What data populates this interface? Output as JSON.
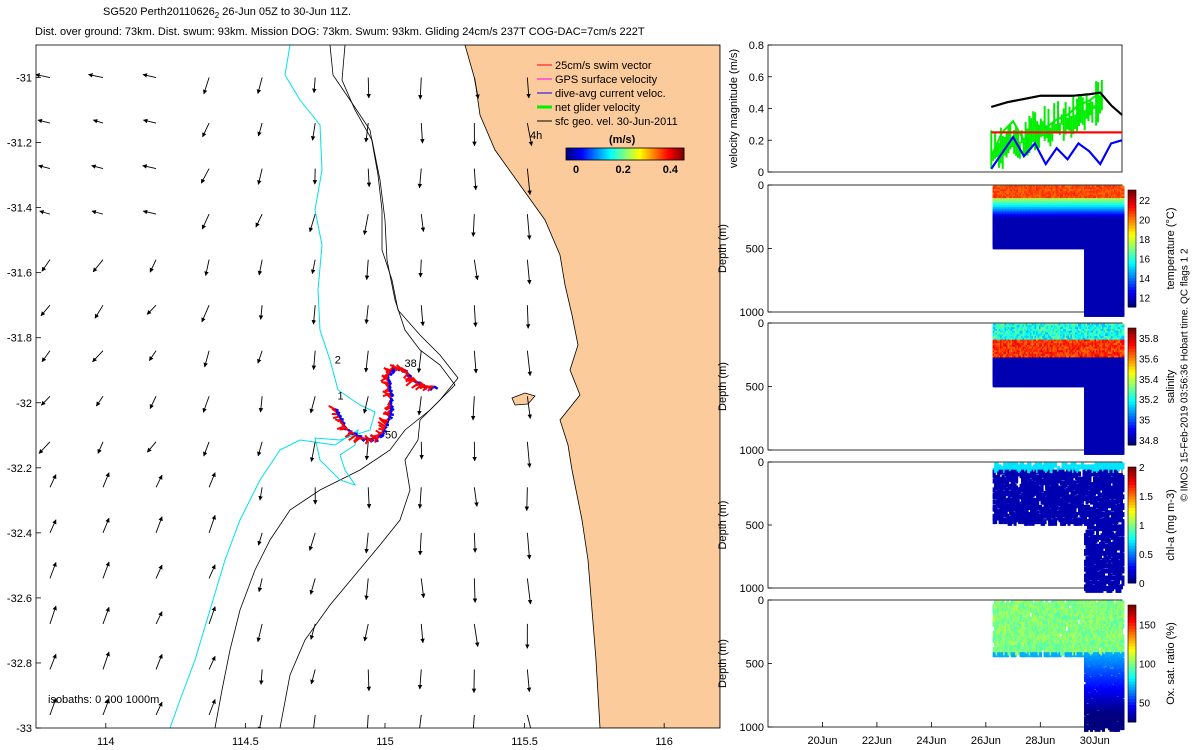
{
  "header": {
    "title_line1_pre": "SG520 Perth20110626",
    "title_line1_sub": "2",
    "title_line1_post": " 26-Jun 05Z to 30-Jun 11Z.",
    "title_line2": "Dist. over ground: 73km. Dist. swum: 93km. Mission DOG: 73km. Swum: 93km. Gliding 24cm/s 237T COG-DAC=7cm/s 222T"
  },
  "credit": "© IMOS 15-Feb-2019 03:56:36 Hobart time. QC flags 1  2",
  "colors": {
    "land": "#fbcb9c",
    "isobath_shallow": "#00e0e8",
    "isobath_deep": "#000000",
    "swim": "#ff0000",
    "gps": "#ff00ff",
    "dac": "#0000ff",
    "net": "#00ee00",
    "sfc": "#000000"
  },
  "chart_data": [
    {
      "type": "map",
      "x_ticks": [
        "114",
        "114.5",
        "115",
        "115.5",
        "116"
      ],
      "y_ticks": [
        "-31",
        "-31.2",
        "-31.4",
        "-31.6",
        "-31.8",
        "-32",
        "-32.2",
        "-32.4",
        "-32.6",
        "-32.8",
        "-33"
      ],
      "xlim": [
        113.75,
        116.2
      ],
      "ylim": [
        -33.0,
        -30.9
      ],
      "legend": {
        "items": [
          "25cm/s swim vector",
          "GPS surface velocity",
          "dive-avg current veloc.",
          "net glider velocity",
          "sfc geo. vel. 30-Jun-2011"
        ],
        "scale_label": "4h",
        "colorbar_title": "(m/s)",
        "colorbar_ticks": [
          "0",
          "0.2",
          "0.4"
        ],
        "colorbar_range": [
          0,
          0.5
        ]
      },
      "isobaths_note": "isobaths: 0   200   1000m",
      "dive_labels": [
        {
          "label": "2",
          "lon": 114.82,
          "lat": -31.88
        },
        {
          "label": "1",
          "lon": 114.83,
          "lat": -31.99
        },
        {
          "label": "38",
          "lon": 115.07,
          "lat": -31.89
        },
        {
          "label": "50",
          "lon": 115.0,
          "lat": -32.11
        }
      ],
      "glider_track": [
        [
          114.82,
          -32.02
        ],
        [
          114.86,
          -32.08
        ],
        [
          114.92,
          -32.11
        ],
        [
          114.97,
          -32.11
        ],
        [
          115.0,
          -32.08
        ],
        [
          115.02,
          -32.03
        ],
        [
          115.02,
          -31.97
        ],
        [
          115.01,
          -31.92
        ],
        [
          115.03,
          -31.89
        ],
        [
          115.07,
          -31.9
        ],
        [
          115.1,
          -31.93
        ],
        [
          115.14,
          -31.95
        ],
        [
          115.18,
          -31.95
        ]
      ],
      "sfc_vel_field_u": [
        -0.15,
        -0.05,
        0.0,
        0.05
      ],
      "sfc_vel_field_v": [
        -0.15,
        -0.3,
        -0.35,
        -0.4
      ]
    },
    {
      "type": "line",
      "ylabel": "velocity magnitude (m/s)",
      "y_ticks": [
        "0",
        "0.2",
        "0.4",
        "0.6",
        "0.8"
      ],
      "ylim": [
        0,
        0.8
      ],
      "xlim": [
        18.0,
        31.0
      ],
      "series": [
        {
          "color": "#000000",
          "x": [
            26.2,
            26.8,
            27.4,
            28.0,
            28.6,
            29.2,
            29.8,
            30.2,
            30.6,
            31.0
          ],
          "values": [
            0.41,
            0.44,
            0.46,
            0.48,
            0.48,
            0.48,
            0.49,
            0.5,
            0.42,
            0.36
          ]
        },
        {
          "color": "#ff0000",
          "x": [
            26.2,
            31.0
          ],
          "values": [
            0.25,
            0.25
          ]
        },
        {
          "color": "#0000ff",
          "x": [
            26.2,
            26.6,
            27.0,
            27.4,
            27.8,
            28.2,
            28.6,
            29.0,
            29.4,
            29.8,
            30.2,
            30.6,
            31.0
          ],
          "values": [
            0.02,
            0.12,
            0.22,
            0.1,
            0.18,
            0.05,
            0.15,
            0.08,
            0.18,
            0.13,
            0.05,
            0.18,
            0.2
          ]
        },
        {
          "color": "#00ee00",
          "x": [
            26.2,
            26.6,
            27.0,
            27.4,
            27.8,
            28.2,
            28.6,
            29.0,
            29.4,
            29.8,
            30.2
          ],
          "values": [
            0.1,
            0.25,
            0.32,
            0.2,
            0.3,
            0.28,
            0.33,
            0.36,
            0.42,
            0.45,
            0.5
          ]
        }
      ]
    },
    {
      "type": "heatmap",
      "ylabel": "Depth (m)",
      "cbar_label": "temperature (°C)",
      "y_ticks": [
        "0",
        "500",
        "1000"
      ],
      "cbar_ticks": [
        "12",
        "14",
        "16",
        "18",
        "20",
        "22"
      ],
      "ylim": [
        0,
        1000
      ],
      "clim": [
        11,
        23
      ],
      "xlim": [
        18.0,
        31.0
      ]
    },
    {
      "type": "heatmap",
      "ylabel": "Depth (m)",
      "cbar_label": "salinity",
      "y_ticks": [
        "0",
        "500",
        "1000"
      ],
      "cbar_ticks": [
        "34.8",
        "35",
        "35.2",
        "35.4",
        "35.6",
        "35.8"
      ],
      "ylim": [
        0,
        1000
      ],
      "clim": [
        34.75,
        35.9
      ],
      "xlim": [
        18.0,
        31.0
      ]
    },
    {
      "type": "heatmap",
      "ylabel": "Depth (m)",
      "cbar_label": "chl-a (mg m-3)",
      "y_ticks": [
        "0",
        "500",
        "1000"
      ],
      "cbar_ticks": [
        "0",
        "0.5",
        "1",
        "1.5",
        "2"
      ],
      "ylim": [
        0,
        1000
      ],
      "clim": [
        0,
        2
      ],
      "xlim": [
        18.0,
        31.0
      ]
    },
    {
      "type": "heatmap",
      "ylabel": "Depth (m)",
      "cbar_label": "Ox. sat. ratio (%)",
      "y_ticks": [
        "0",
        "500",
        "1000"
      ],
      "cbar_ticks": [
        "50",
        "100",
        "150"
      ],
      "ylim": [
        0,
        1000
      ],
      "clim": [
        25,
        175
      ],
      "xlim": [
        18.0,
        31.0
      ],
      "x_ticks": [
        "20Jun",
        "22Jun",
        "24Jun",
        "26Jun",
        "28Jun",
        "30Jun"
      ],
      "x_tick_values": [
        20,
        22,
        24,
        26,
        28,
        30
      ]
    }
  ]
}
